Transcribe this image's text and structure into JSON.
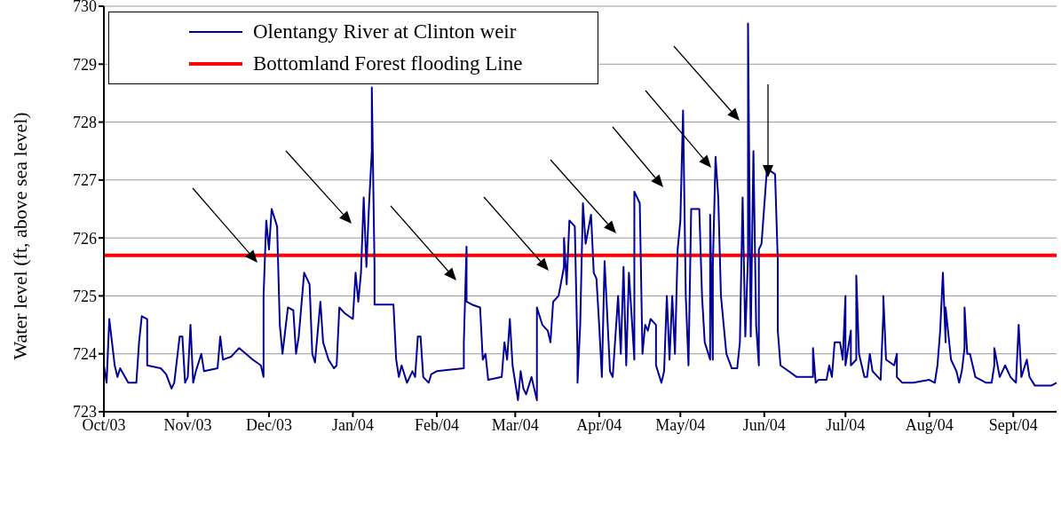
{
  "chart_data": {
    "type": "line",
    "ylabel": "Water level (ft, above sea level)",
    "x": [
      "2003-10-01",
      "2003-10-02",
      "2003-10-03",
      "2003-10-05",
      "2003-10-06",
      "2003-10-07",
      "2003-10-10",
      "2003-10-13",
      "2003-10-14",
      "2003-10-15",
      "2003-10-17",
      "2003-10-17",
      "2003-10-22",
      "2003-10-24",
      "2003-10-26",
      "2003-10-27",
      "2003-10-29",
      "2003-10-30",
      "2003-10-31",
      "2003-11-01",
      "2003-11-02",
      "2003-11-03",
      "2003-11-04",
      "2003-11-06",
      "2003-11-07",
      "2003-11-12",
      "2003-11-13",
      "2003-11-14",
      "2003-11-17",
      "2003-11-20",
      "2003-11-25",
      "2003-11-28",
      "2003-11-29",
      "2003-11-29",
      "2003-11-30",
      "2003-12-01",
      "2003-12-02",
      "2003-12-04",
      "2003-12-05",
      "2003-12-06",
      "2003-12-08",
      "2003-12-10",
      "2003-12-11",
      "2003-12-12",
      "2003-12-14",
      "2003-12-16",
      "2003-12-17",
      "2003-12-18",
      "2003-12-20",
      "2003-12-21",
      "2003-12-23",
      "2003-12-25",
      "2003-12-26",
      "2003-12-27",
      "2003-12-29",
      "2004-01-01",
      "2004-01-02",
      "2004-01-03",
      "2004-01-04",
      "2004-01-05",
      "2004-01-06",
      "2004-01-07",
      "2004-01-08",
      "2004-01-08",
      "2004-01-09",
      "2004-01-09",
      "2004-01-16",
      "2004-01-17",
      "2004-01-18",
      "2004-01-19",
      "2004-01-21",
      "2004-01-23",
      "2004-01-24",
      "2004-01-25",
      "2004-01-26",
      "2004-01-27",
      "2004-01-29",
      "2004-01-30",
      "2004-02-01",
      "2004-02-11",
      "2004-02-11",
      "2004-02-12",
      "2004-02-12",
      "2004-02-14",
      "2004-02-17",
      "2004-02-18",
      "2004-02-19",
      "2004-02-20",
      "2004-02-25",
      "2004-02-26",
      "2004-02-27",
      "2004-02-28",
      "2004-02-29",
      "2004-03-02",
      "2004-03-03",
      "2004-03-04",
      "2004-03-05",
      "2004-03-07",
      "2004-03-09",
      "2004-03-09",
      "2004-03-11",
      "2004-03-13",
      "2004-03-14",
      "2004-03-15",
      "2004-03-17",
      "2004-03-19",
      "2004-03-19",
      "2004-03-20",
      "2004-03-21",
      "2004-03-23",
      "2004-03-24",
      "2004-03-24",
      "2004-03-25",
      "2004-03-26",
      "2004-03-27",
      "2004-03-29",
      "2004-03-30",
      "2004-03-31",
      "2004-04-01",
      "2004-04-02",
      "2004-04-03",
      "2004-04-05",
      "2004-04-06",
      "2004-04-08",
      "2004-04-09",
      "2004-04-10",
      "2004-04-11",
      "2004-04-12",
      "2004-04-14",
      "2004-04-14",
      "2004-04-16",
      "2004-04-17",
      "2004-04-18",
      "2004-04-19",
      "2004-04-20",
      "2004-04-22",
      "2004-04-22",
      "2004-04-24",
      "2004-04-25",
      "2004-04-26",
      "2004-04-27",
      "2004-04-28",
      "2004-04-29",
      "2004-04-30",
      "2004-05-01",
      "2004-05-02",
      "2004-05-03",
      "2004-05-04",
      "2004-05-05",
      "2004-05-08",
      "2004-05-09",
      "2004-05-10",
      "2004-05-12",
      "2004-05-12",
      "2004-05-13",
      "2004-05-13",
      "2004-05-14",
      "2004-05-15",
      "2004-05-16",
      "2004-05-18",
      "2004-05-20",
      "2004-05-22",
      "2004-05-23",
      "2004-05-24",
      "2004-05-25",
      "2004-05-26",
      "2004-05-26",
      "2004-05-27",
      "2004-05-28",
      "2004-05-29",
      "2004-05-30",
      "2004-05-30",
      "2004-05-31",
      "2004-06-02",
      "2004-06-05",
      "2004-06-06",
      "2004-06-06",
      "2004-06-07",
      "2004-06-10",
      "2004-06-13",
      "2004-06-15",
      "2004-06-19",
      "2004-06-19",
      "2004-06-20",
      "2004-06-21",
      "2004-06-24",
      "2004-06-25",
      "2004-06-26",
      "2004-06-27",
      "2004-06-29",
      "2004-06-30",
      "2004-07-01",
      "2004-07-01",
      "2004-07-03",
      "2004-07-03",
      "2004-07-05",
      "2004-07-05",
      "2004-07-06",
      "2004-07-08",
      "2004-07-09",
      "2004-07-10",
      "2004-07-11",
      "2004-07-14",
      "2004-07-15",
      "2004-07-15",
      "2004-07-16",
      "2004-07-19",
      "2004-07-20",
      "2004-07-20",
      "2004-07-22",
      "2004-07-26",
      "2004-08-01",
      "2004-08-03",
      "2004-08-04",
      "2004-08-05",
      "2004-08-06",
      "2004-08-07",
      "2004-08-07",
      "2004-08-09",
      "2004-08-11",
      "2004-08-12",
      "2004-08-13",
      "2004-08-14",
      "2004-08-14",
      "2004-08-15",
      "2004-08-16",
      "2004-08-18",
      "2004-08-22",
      "2004-08-24",
      "2004-08-25",
      "2004-08-25",
      "2004-08-27",
      "2004-08-28",
      "2004-08-29",
      "2004-08-31",
      "2004-09-02",
      "2004-09-03",
      "2004-09-04",
      "2004-09-06",
      "2004-09-07",
      "2004-09-09",
      "2004-09-15",
      "2004-09-17"
    ],
    "series": [
      {
        "name": "Olentangy River at Clinton weir",
        "color": "#000099",
        "values": [
          723.8,
          723.5,
          724.6,
          723.8,
          723.6,
          723.75,
          723.5,
          723.5,
          724.2,
          724.65,
          724.6,
          723.8,
          723.75,
          723.65,
          723.4,
          723.5,
          724.3,
          724.3,
          723.5,
          723.6,
          724.5,
          723.5,
          723.7,
          724.0,
          723.7,
          723.75,
          724.3,
          723.9,
          723.95,
          724.1,
          723.9,
          723.8,
          723.6,
          725.0,
          726.3,
          725.8,
          726.5,
          726.2,
          724.5,
          724.0,
          724.8,
          724.75,
          724.0,
          724.3,
          725.4,
          725.2,
          724.0,
          723.85,
          724.9,
          724.2,
          723.9,
          723.75,
          723.8,
          724.8,
          724.7,
          724.6,
          725.4,
          724.9,
          725.4,
          726.7,
          725.5,
          726.6,
          727.5,
          728.6,
          725.5,
          724.85,
          724.85,
          723.9,
          723.6,
          723.8,
          723.5,
          723.7,
          723.6,
          724.3,
          724.3,
          723.6,
          723.5,
          723.65,
          723.7,
          723.75,
          724.2,
          725.85,
          724.9,
          724.85,
          724.8,
          723.9,
          724.0,
          723.55,
          723.6,
          724.2,
          723.9,
          724.6,
          723.8,
          723.2,
          723.7,
          723.4,
          723.3,
          723.6,
          723.2,
          724.8,
          724.5,
          724.4,
          724.2,
          724.9,
          725.0,
          725.5,
          726.0,
          725.2,
          726.3,
          726.2,
          724.0,
          723.5,
          724.5,
          726.6,
          725.9,
          726.4,
          725.4,
          725.3,
          724.5,
          723.6,
          725.6,
          723.7,
          723.6,
          725.0,
          724.0,
          725.5,
          723.8,
          725.4,
          723.9,
          726.8,
          726.6,
          724.0,
          724.5,
          724.4,
          724.6,
          724.5,
          723.8,
          723.5,
          723.7,
          725.0,
          723.9,
          725.0,
          724.0,
          725.8,
          726.3,
          728.2,
          725.0,
          723.8,
          726.5,
          726.5,
          725.0,
          724.2,
          723.9,
          726.4,
          723.9,
          725.5,
          727.4,
          726.7,
          725.0,
          724.0,
          723.75,
          723.75,
          724.2,
          726.7,
          724.3,
          725.7,
          729.7,
          724.3,
          727.5,
          724.5,
          723.8,
          725.8,
          725.9,
          727.2,
          727.1,
          725.6,
          724.4,
          723.8,
          723.7,
          723.6,
          723.6,
          723.6,
          724.1,
          723.5,
          723.55,
          723.55,
          723.8,
          723.6,
          724.2,
          724.2,
          723.9,
          725.0,
          723.8,
          724.4,
          723.8,
          723.9,
          725.35,
          724.0,
          723.6,
          723.6,
          724.0,
          723.7,
          723.55,
          724.7,
          725.0,
          723.9,
          723.8,
          724.0,
          723.6,
          723.5,
          723.5,
          723.55,
          723.5,
          723.8,
          724.4,
          725.4,
          724.2,
          724.8,
          723.9,
          723.7,
          723.5,
          723.7,
          724.1,
          724.8,
          724.0,
          724.0,
          723.6,
          723.5,
          723.5,
          723.8,
          724.1,
          723.6,
          723.7,
          723.8,
          723.6,
          723.5,
          724.5,
          723.6,
          723.9,
          723.6,
          723.45,
          723.45,
          723.5
        ]
      }
    ],
    "ref_lines": [
      {
        "axis": "y",
        "value": 725.7,
        "label": "Bottomland Forest flooding Line",
        "color": "#ff0000"
      }
    ],
    "xlim": [
      "2003-10-01",
      "2004-09-17"
    ],
    "xticks": [
      {
        "value": "2003-10-01",
        "label": "Oct/03"
      },
      {
        "value": "2003-11-01",
        "label": "Nov/03"
      },
      {
        "value": "2003-12-01",
        "label": "Dec/03"
      },
      {
        "value": "2004-01-01",
        "label": "Jan/04"
      },
      {
        "value": "2004-02-01",
        "label": "Feb/04"
      },
      {
        "value": "2004-03-01",
        "label": "Mar/04"
      },
      {
        "value": "2004-04-01",
        "label": "Apr/04"
      },
      {
        "value": "2004-05-01",
        "label": "May/04"
      },
      {
        "value": "2004-06-01",
        "label": "Jun/04"
      },
      {
        "value": "2004-07-01",
        "label": "Jul/04"
      },
      {
        "value": "2004-08-01",
        "label": "Aug/04"
      },
      {
        "value": "2004-09-01",
        "label": "Sept/04"
      }
    ],
    "ylim": [
      723,
      730
    ],
    "yticks": [
      723,
      724,
      725,
      726,
      727,
      728,
      729,
      730
    ],
    "grid": "y",
    "legend": "top left"
  }
}
